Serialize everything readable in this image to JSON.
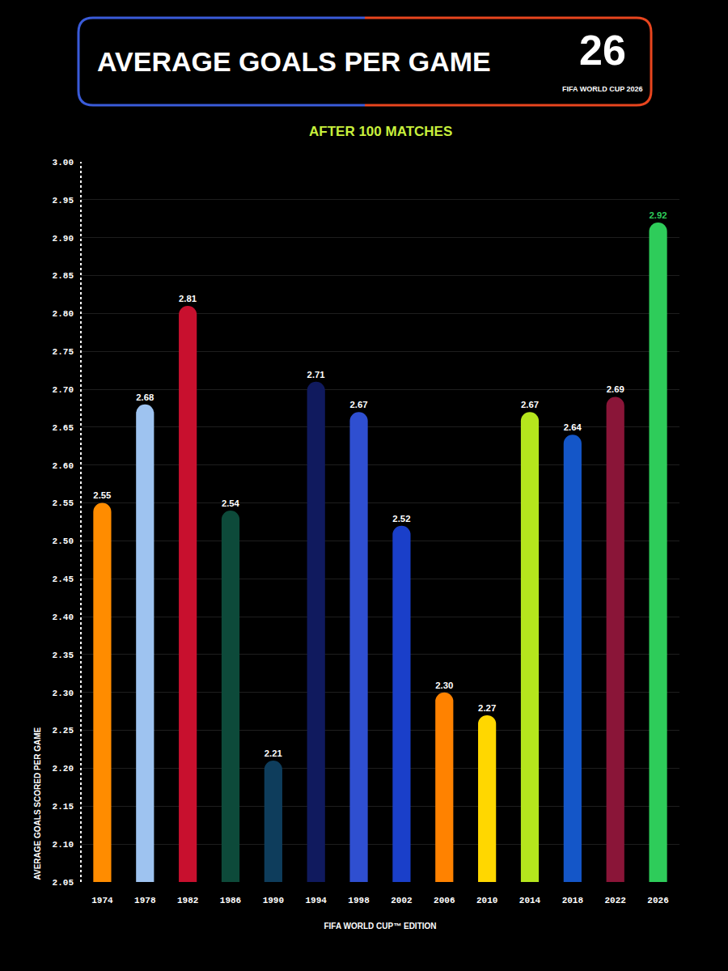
{
  "chart_data": {
    "type": "bar",
    "title": "AVERAGE GOALS PER GAME",
    "subtitle": "AFTER 100 MATCHES",
    "badge": [
      "26",
      "FIFA WORLD CUP 2026"
    ],
    "x_label": "FIFA WORLD CUP™ EDITION",
    "y_label": "AVERAGE GOALS SCORED PER GAME",
    "categories": [
      "1974",
      "1978",
      "1982",
      "1986",
      "1990",
      "1994",
      "1998",
      "2002",
      "2006",
      "2010",
      "2014",
      "2018",
      "2022",
      "2026"
    ],
    "values": [
      2.55,
      2.68,
      2.81,
      2.54,
      2.21,
      2.71,
      2.67,
      2.52,
      2.3,
      2.27,
      2.67,
      2.64,
      2.69,
      2.92
    ],
    "value_labels": [
      "2.55",
      "2.68",
      "2.81",
      "2.54",
      "2.21",
      "2.71",
      "2.67",
      "2.52",
      "2.30",
      "2.27",
      "2.67",
      "2.64",
      "2.69",
      "2.92"
    ],
    "colors": [
      "#ff8c00",
      "#9ec3f0",
      "#c8102e",
      "#0d4a3a",
      "#0e3d5c",
      "#101a5e",
      "#2f4fd0",
      "#1a3fc9",
      "#ff8200",
      "#ffd700",
      "#b5e61d",
      "#1456c8",
      "#8a1538",
      "#2ecc5a"
    ],
    "ylim": [
      2.05,
      3.0
    ],
    "yticks": [
      2.05,
      {
        "value": 2.1,
        "label": "2.10"
      },
      2.15,
      {
        "value": 2.2,
        "label": "2.20"
      },
      2.25,
      {
        "value": 2.3,
        "label": "2.30"
      },
      2.35,
      {
        "value": 2.4,
        "label": "2.40"
      },
      2.45,
      {
        "value": 2.5,
        "label": "2.50"
      },
      2.55,
      {
        "value": 2.6,
        "label": "2.60"
      },
      2.65,
      {
        "value": 2.7,
        "label": "2.70"
      },
      2.75,
      {
        "value": 2.8,
        "label": "2.80"
      },
      2.85,
      {
        "value": 2.9,
        "label": "2.90"
      },
      2.95,
      {
        "value": 3.0,
        "label": "3.00"
      }
    ],
    "grid": true,
    "data_labels": true
  }
}
